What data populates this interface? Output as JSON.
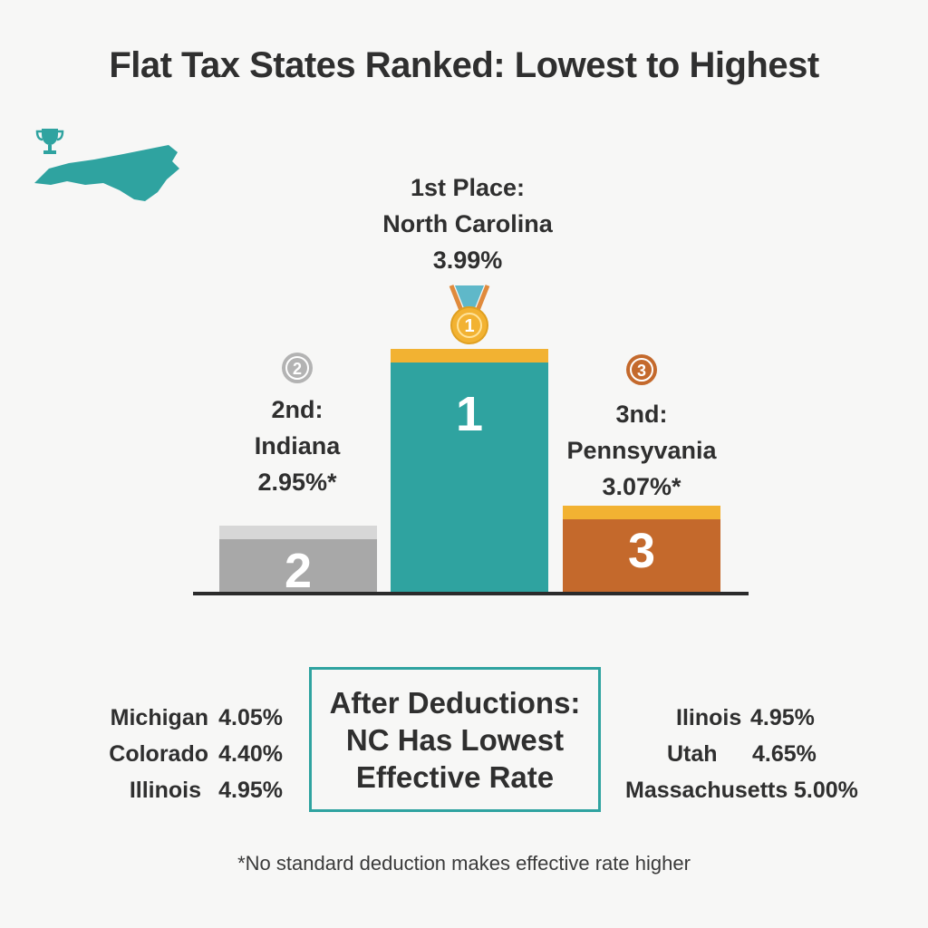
{
  "title": "Flat Tax States Ranked: Lowest to Highest",
  "icons": {
    "map": "north-carolina-map",
    "trophy": "trophy-icon",
    "medal": "medal-icon"
  },
  "colors": {
    "teal": "#2fa3a0",
    "gold": "#f2b232",
    "silver": "#a8a8a8",
    "bronze": "#c4692c",
    "axis": "#2b2b2b"
  },
  "chart_data": {
    "type": "bar",
    "style": "podium",
    "categories": [
      "Indiana",
      "North Carolina",
      "Pennsyvania"
    ],
    "values": [
      2.95,
      3.99,
      3.07
    ],
    "ranks": [
      2,
      1,
      3
    ],
    "places": [
      {
        "rank_text": "2",
        "medal": "2",
        "line1": "2nd:",
        "line2": "Indiana",
        "line3": "2.95%*"
      },
      {
        "rank_text": "1",
        "medal": "1",
        "line1": "1st Place:",
        "line2": "North Carolina",
        "line3": "3.99%"
      },
      {
        "rank_text": "3",
        "medal": "3",
        "line1": "3nd:",
        "line2": "Pennsyvania",
        "line3": "3.07%*"
      }
    ]
  },
  "callout": {
    "line1": "After Deductions:",
    "line2": "NC Has Lowest",
    "line3": "Effective Rate"
  },
  "others_left": [
    {
      "name": "Michigan",
      "rate": "4.05%"
    },
    {
      "name": "Colorado",
      "rate": "4.40%"
    },
    {
      "name": "Illinois",
      "rate": "4.95%"
    }
  ],
  "others_right": [
    {
      "name": "Ilinois",
      "rate": "4.95%"
    },
    {
      "name": "Utah",
      "rate": "4.65%"
    },
    {
      "name": "Massachusetts",
      "rate": "5.00%"
    }
  ],
  "footnote": "*No standard deduction makes effective rate higher"
}
